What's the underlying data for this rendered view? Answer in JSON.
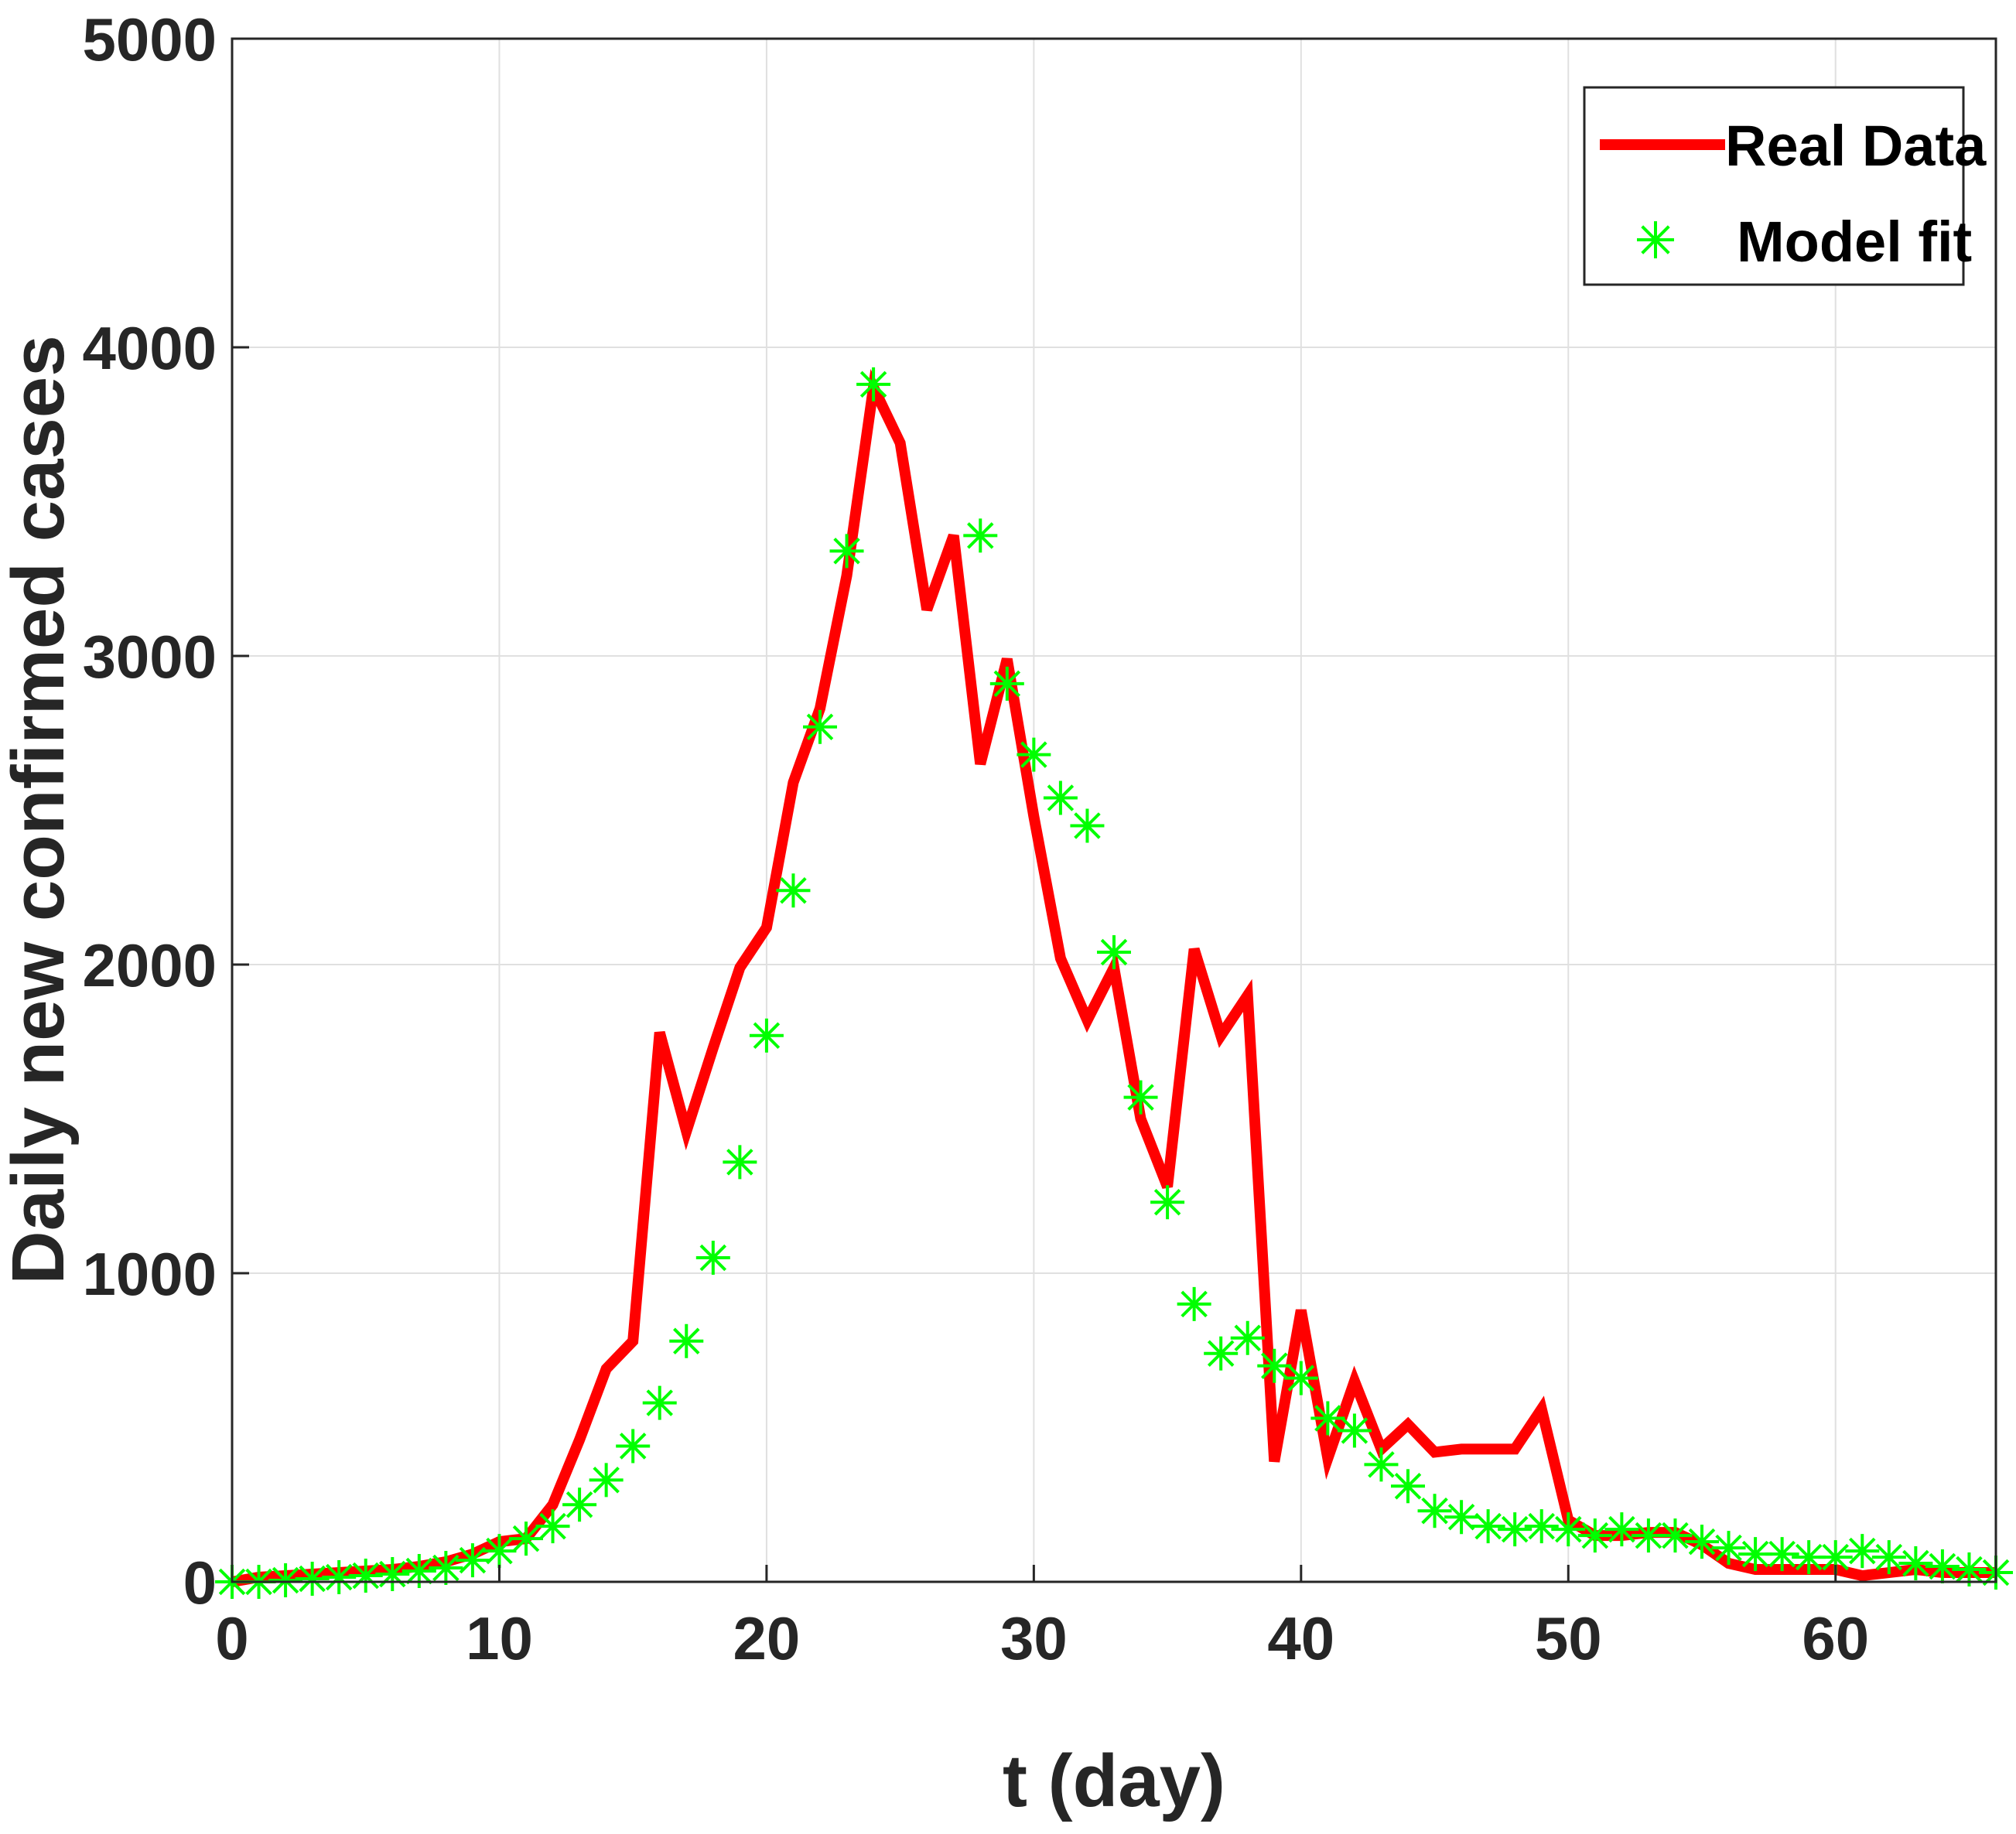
{
  "chart_data": {
    "type": "line",
    "xlabel": "t (day)",
    "ylabel": "Daily new confirmed cases",
    "xlim": [
      0,
      66
    ],
    "ylim": [
      0,
      5000
    ],
    "xticks": [
      0,
      10,
      20,
      30,
      40,
      50,
      60
    ],
    "yticks": [
      0,
      1000,
      2000,
      3000,
      4000,
      5000
    ],
    "grid": true,
    "legend_position": "top-right",
    "series": [
      {
        "name": "Real Data",
        "style": "line",
        "color": "#ff0000",
        "x": [
          0,
          1,
          2,
          3,
          4,
          5,
          6,
          7,
          8,
          9,
          10,
          11,
          12,
          13,
          14,
          15,
          16,
          17,
          18,
          19,
          20,
          21,
          22,
          23,
          24,
          25,
          26,
          27,
          28,
          29,
          30,
          31,
          32,
          33,
          34,
          35,
          36,
          37,
          38,
          39,
          40,
          41,
          42,
          43,
          44,
          45,
          46,
          47,
          48,
          49,
          50,
          51,
          52,
          53,
          54,
          55,
          56,
          57,
          58,
          59,
          60,
          61,
          62,
          63,
          64,
          65,
          66
        ],
        "y": [
          0,
          15,
          20,
          25,
          30,
          35,
          40,
          50,
          65,
          90,
          130,
          140,
          250,
          460,
          690,
          780,
          1780,
          1460,
          1730,
          1990,
          2120,
          2590,
          2830,
          3260,
          3870,
          3690,
          3150,
          3390,
          2650,
          2990,
          2480,
          2020,
          1820,
          1990,
          1500,
          1280,
          2050,
          1770,
          1900,
          390,
          880,
          400,
          650,
          430,
          510,
          420,
          430,
          430,
          430,
          560,
          200,
          150,
          150,
          160,
          160,
          120,
          60,
          40,
          40,
          40,
          40,
          20,
          30,
          40,
          30,
          30,
          30
        ]
      },
      {
        "name": "Model fit",
        "style": "marker",
        "marker": "asterisk",
        "color": "#00ff00",
        "x": [
          0,
          1,
          2,
          3,
          4,
          5,
          6,
          7,
          8,
          9,
          10,
          11,
          12,
          13,
          14,
          15,
          16,
          17,
          18,
          19,
          20,
          21,
          22,
          23,
          24,
          28,
          29,
          30,
          31,
          32,
          33,
          34,
          35,
          36,
          37,
          38,
          39,
          40,
          41,
          42,
          43,
          44,
          45,
          46,
          47,
          48,
          49,
          50,
          51,
          52,
          53,
          54,
          55,
          56,
          57,
          58,
          59,
          60,
          61,
          62,
          63,
          64,
          65,
          66
        ],
        "y": [
          0,
          0,
          5,
          10,
          15,
          20,
          25,
          35,
          45,
          70,
          100,
          140,
          180,
          250,
          330,
          440,
          580,
          780,
          1050,
          1360,
          1770,
          2240,
          2770,
          3340,
          3880,
          3390,
          2910,
          2680,
          2540,
          2450,
          2040,
          1570,
          1230,
          900,
          740,
          790,
          700,
          660,
          530,
          490,
          380,
          310,
          230,
          210,
          180,
          170,
          180,
          170,
          150,
          170,
          150,
          150,
          130,
          110,
          90,
          90,
          80,
          80,
          100,
          80,
          60,
          50,
          40,
          30
        ]
      }
    ]
  }
}
